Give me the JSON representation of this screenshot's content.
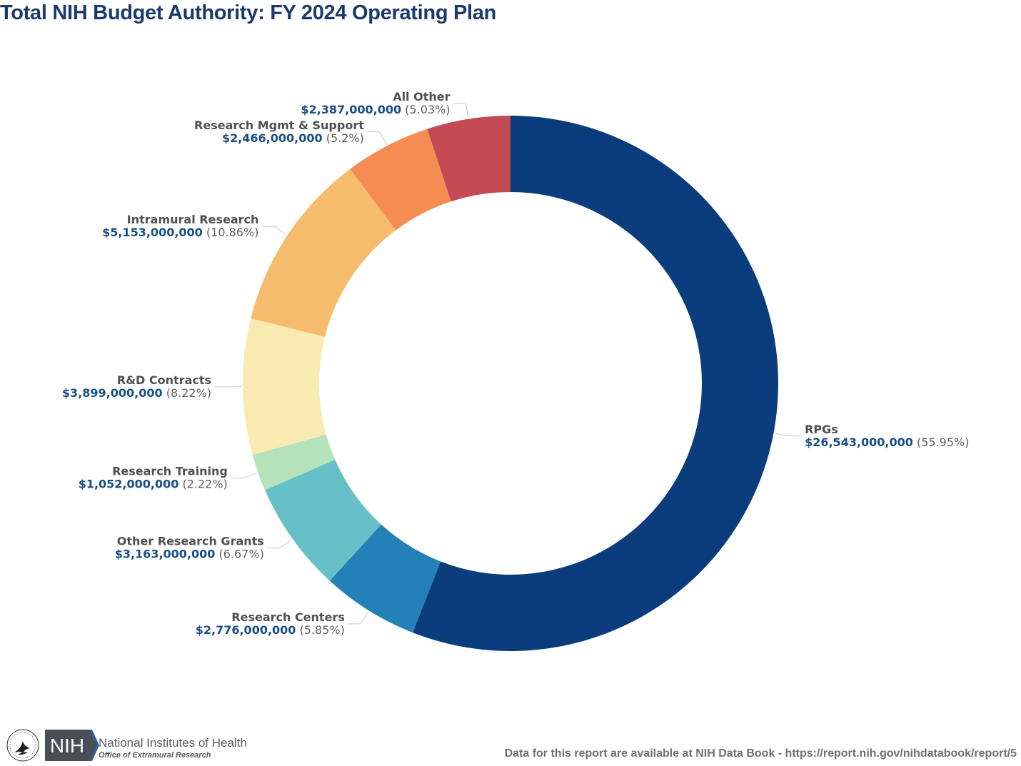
{
  "page": {
    "title": "Total NIH Budget Authority: FY 2024 Operating Plan"
  },
  "footer": {
    "org_name": "National Institutes of Health",
    "org_subname": "Office of Extramural Research",
    "nih_abbrev": "NIH",
    "note": "Data for this report are available at NIH Data Book - https://report.nih.gov/nihdatabook/report/5"
  },
  "chart_data": {
    "type": "pie",
    "variant": "donut",
    "title": "Total NIH Budget Authority: FY 2024 Operating Plan",
    "unit": "USD",
    "slices": [
      {
        "label": "RPGs",
        "value": 26543000000,
        "value_text": "$26,543,000,000",
        "percent_text": "(55.95%)",
        "color": "#0b3d7c"
      },
      {
        "label": "Research Centers",
        "value": 2776000000,
        "value_text": "$2,776,000,000",
        "percent_text": "(5.85%)",
        "color": "#2381b8"
      },
      {
        "label": "Other Research Grants",
        "value": 3163000000,
        "value_text": "$3,163,000,000",
        "percent_text": "(6.67%)",
        "color": "#67c0c7"
      },
      {
        "label": "Research Training",
        "value": 1052000000,
        "value_text": "$1,052,000,000",
        "percent_text": "(2.22%)",
        "color": "#b3e2bb"
      },
      {
        "label": "R&D Contracts",
        "value": 3899000000,
        "value_text": "$3,899,000,000",
        "percent_text": "(8.22%)",
        "color": "#f8eab0"
      },
      {
        "label": "Intramural Research",
        "value": 5153000000,
        "value_text": "$5,153,000,000",
        "percent_text": "(10.86%)",
        "color": "#f4bc6c"
      },
      {
        "label": "Research Mgmt & Support",
        "value": 2466000000,
        "value_text": "$2,466,000,000",
        "percent_text": "(5.2%)",
        "color": "#f58c52"
      },
      {
        "label": "All Other",
        "value": 2387000000,
        "value_text": "$2,387,000,000",
        "percent_text": "(5.03%)",
        "color": "#c44b55"
      }
    ],
    "legend": "none"
  }
}
